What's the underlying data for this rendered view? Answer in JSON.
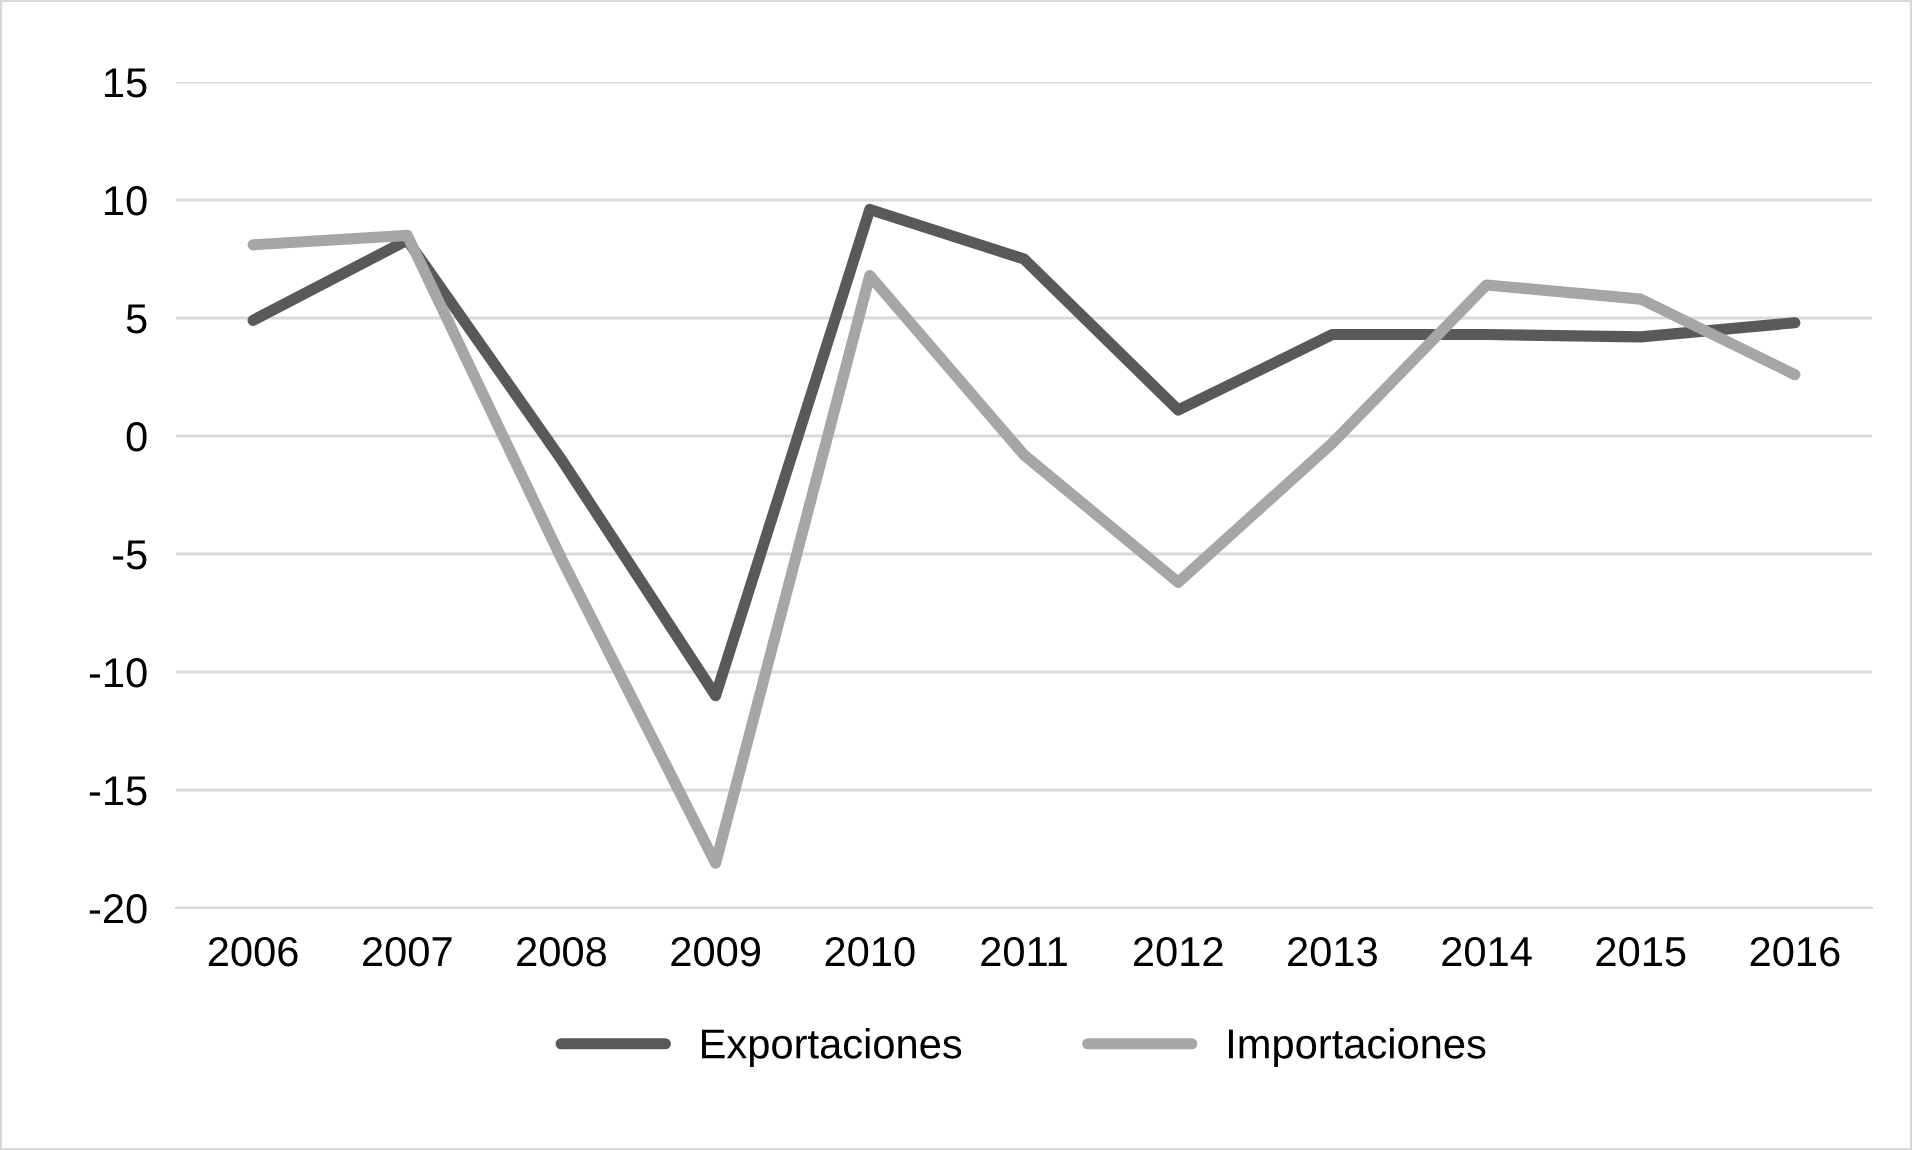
{
  "chart_data": {
    "type": "line",
    "categories": [
      "2006",
      "2007",
      "2008",
      "2009",
      "2010",
      "2011",
      "2012",
      "2013",
      "2014",
      "2015",
      "2016"
    ],
    "series": [
      {
        "name": "Exportaciones",
        "color": "#595959",
        "values": [
          4.9,
          8.3,
          -1.0,
          -11.0,
          9.6,
          7.5,
          1.1,
          4.3,
          4.3,
          4.2,
          4.8
        ]
      },
      {
        "name": "Importaciones",
        "color": "#a6a6a6",
        "values": [
          8.1,
          8.5,
          -5.2,
          -18.1,
          6.8,
          -0.8,
          -6.2,
          -0.3,
          6.4,
          5.8,
          2.6
        ]
      }
    ],
    "ylim": [
      -20,
      15
    ],
    "yticks": [
      -20,
      -15,
      -10,
      -5,
      0,
      5,
      10,
      15
    ],
    "grid": "y",
    "legend": "bottom",
    "marker": "none",
    "line_style": "solid"
  }
}
